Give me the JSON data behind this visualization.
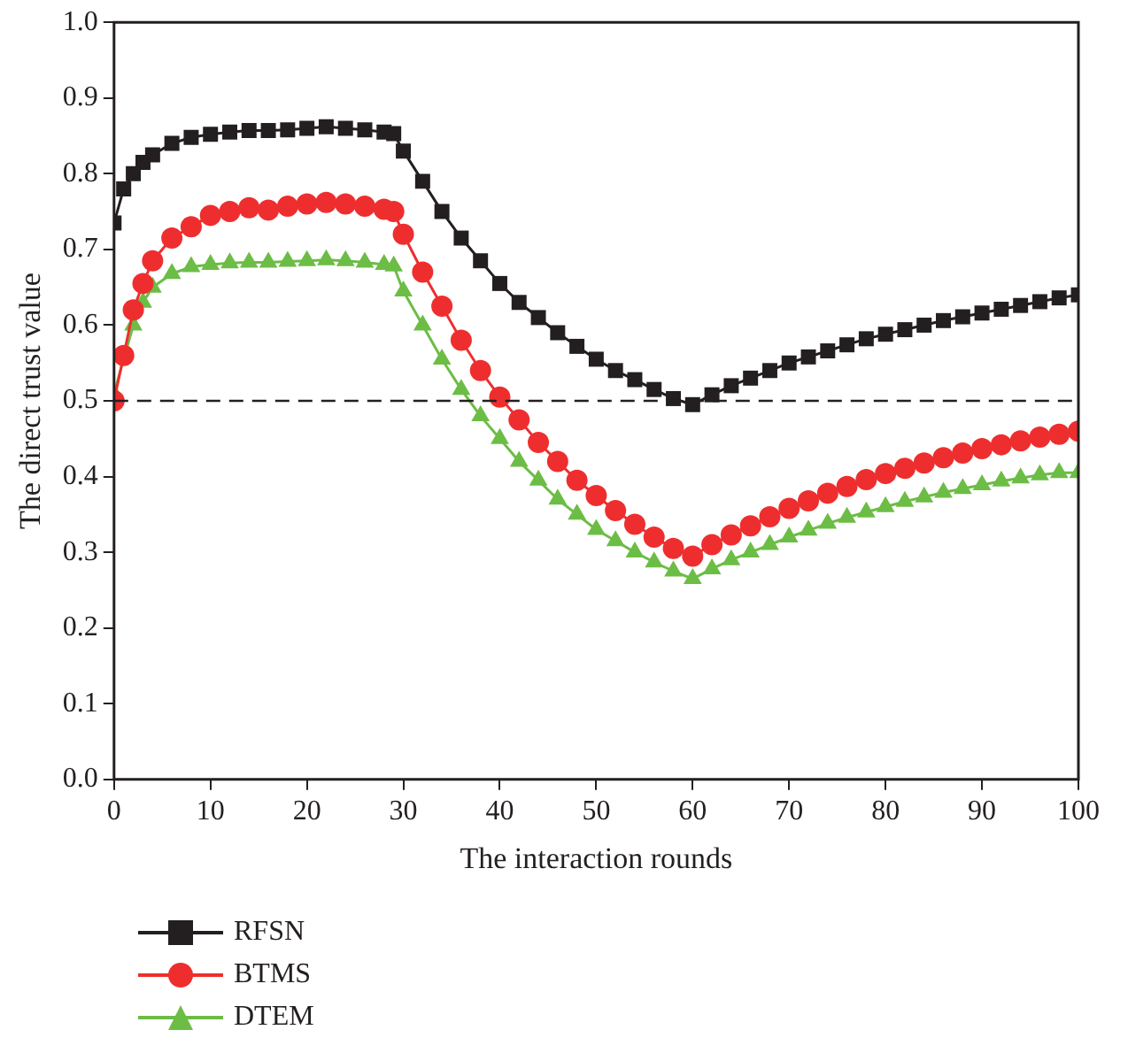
{
  "chart_data": {
    "type": "line",
    "xlabel": "The interaction rounds",
    "ylabel": "The direct trust value",
    "x": [
      0,
      1,
      2,
      3,
      4,
      6,
      8,
      10,
      12,
      14,
      16,
      18,
      20,
      22,
      24,
      26,
      28,
      29,
      30,
      32,
      34,
      36,
      38,
      40,
      42,
      44,
      46,
      48,
      50,
      52,
      54,
      56,
      58,
      60,
      62,
      64,
      66,
      68,
      70,
      72,
      74,
      76,
      78,
      80,
      82,
      84,
      86,
      88,
      90,
      92,
      94,
      96,
      98,
      100
    ],
    "series": [
      {
        "name": "RFSN",
        "color": "#231f20",
        "marker": "square",
        "values": [
          0.735,
          0.78,
          0.8,
          0.815,
          0.825,
          0.84,
          0.848,
          0.852,
          0.855,
          0.857,
          0.857,
          0.858,
          0.86,
          0.862,
          0.86,
          0.858,
          0.855,
          0.853,
          0.83,
          0.79,
          0.75,
          0.715,
          0.685,
          0.655,
          0.63,
          0.61,
          0.59,
          0.572,
          0.555,
          0.54,
          0.528,
          0.515,
          0.503,
          0.495,
          0.508,
          0.52,
          0.53,
          0.54,
          0.55,
          0.558,
          0.566,
          0.574,
          0.582,
          0.588,
          0.594,
          0.6,
          0.606,
          0.611,
          0.616,
          0.621,
          0.626,
          0.631,
          0.636,
          0.64
        ]
      },
      {
        "name": "BTMS",
        "color": "#ee2e2e",
        "marker": "circle",
        "values": [
          0.5,
          0.56,
          0.62,
          0.655,
          0.685,
          0.715,
          0.73,
          0.745,
          0.75,
          0.755,
          0.752,
          0.757,
          0.76,
          0.762,
          0.76,
          0.757,
          0.753,
          0.75,
          0.72,
          0.67,
          0.625,
          0.58,
          0.54,
          0.505,
          0.475,
          0.445,
          0.42,
          0.395,
          0.375,
          0.355,
          0.337,
          0.32,
          0.305,
          0.295,
          0.31,
          0.323,
          0.335,
          0.347,
          0.358,
          0.368,
          0.378,
          0.387,
          0.396,
          0.404,
          0.411,
          0.418,
          0.425,
          0.431,
          0.437,
          0.442,
          0.447,
          0.452,
          0.456,
          0.46
        ]
      },
      {
        "name": "DTEM",
        "color": "#6cbd45",
        "marker": "triangle",
        "values": [
          0.51,
          null,
          0.6,
          0.63,
          0.65,
          0.668,
          0.677,
          0.68,
          0.682,
          0.683,
          0.683,
          0.684,
          0.685,
          0.686,
          0.685,
          0.683,
          0.68,
          0.678,
          0.645,
          0.6,
          0.555,
          0.515,
          0.48,
          0.45,
          0.42,
          0.395,
          0.37,
          0.35,
          0.33,
          0.315,
          0.3,
          0.287,
          0.275,
          0.265,
          0.278,
          0.29,
          0.3,
          0.31,
          0.32,
          0.329,
          0.338,
          0.346,
          0.353,
          0.36,
          0.367,
          0.373,
          0.379,
          0.384,
          0.389,
          0.394,
          0.398,
          0.402,
          0.405,
          0.405
        ]
      }
    ],
    "xlim": [
      0,
      100
    ],
    "xticks": [
      0,
      10,
      20,
      30,
      40,
      50,
      60,
      70,
      80,
      90,
      100
    ],
    "ylim": [
      0,
      1
    ],
    "yticks": [
      {
        "value": 0,
        "label": "0.0"
      },
      0.1,
      0.2,
      0.3,
      0.4,
      0.5,
      0.6,
      0.7,
      0.8,
      0.9,
      {
        "value": 1,
        "label": "1.0"
      }
    ],
    "ref_lines": [
      {
        "axis": "y",
        "value": 0.5,
        "color": "#231f20",
        "line_style": "dashed"
      }
    ],
    "grid": false,
    "legend": "bottom left",
    "line_style": "solid"
  }
}
